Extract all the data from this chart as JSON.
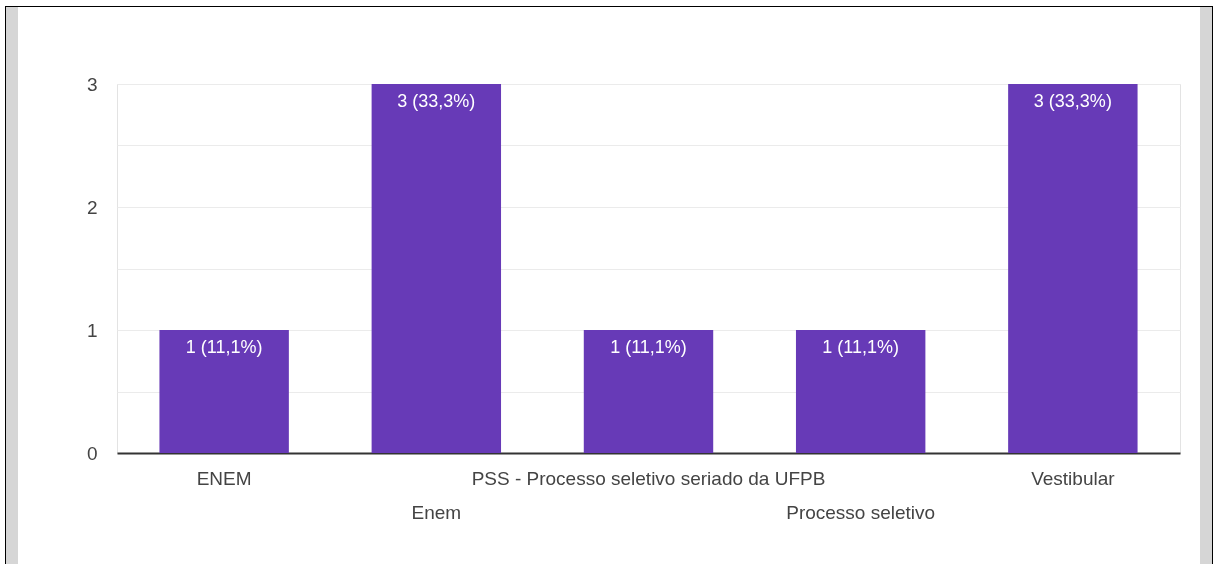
{
  "chart_data": {
    "type": "bar",
    "categories": [
      "ENEM",
      "Enem",
      "PSS - Processo seletivo seriado da UFPB",
      "Processo seletivo",
      "Vestibular"
    ],
    "values": [
      1,
      3,
      1,
      1,
      3
    ],
    "color": "#673ab7",
    "value_labels": [
      "1 (11,1%)",
      "3 (33,3%)",
      "1 (11,1%)",
      "1 (11,1%)",
      "3 (33,3%)"
    ],
    "ylim": [
      0,
      3
    ],
    "yticks": [
      0,
      {
        "value": 0.5,
        "label": null
      },
      1,
      {
        "value": 1.5,
        "label": null
      },
      2,
      {
        "value": 2.5,
        "label": null
      },
      3
    ],
    "grid": "y"
  }
}
